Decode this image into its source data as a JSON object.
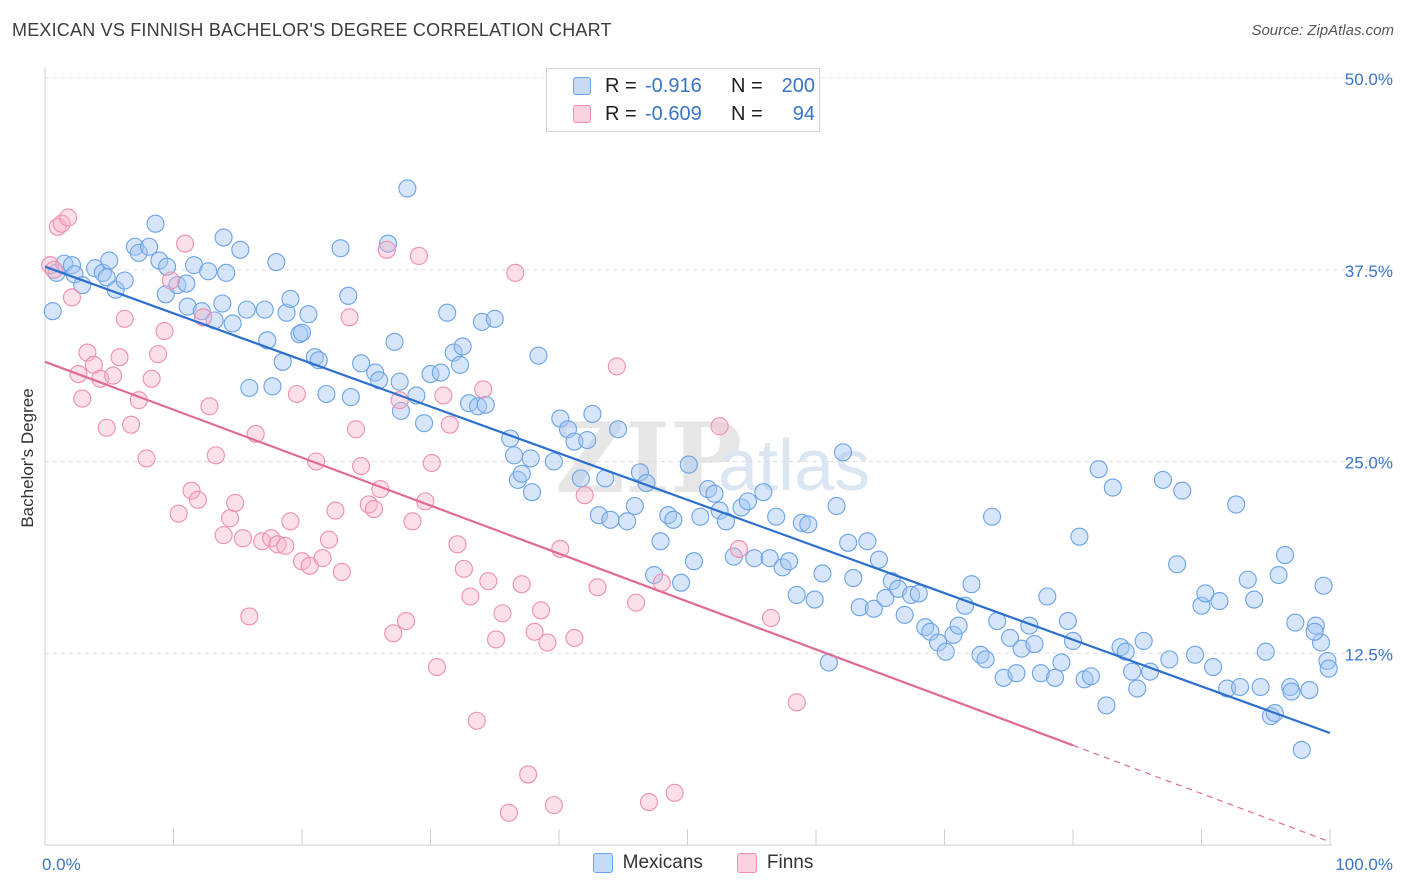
{
  "header": {
    "title": "MEXICAN VS FINNISH BACHELOR'S DEGREE CORRELATION CHART",
    "source": "Source: ZipAtlas.com"
  },
  "watermark": {
    "zip": "ZIP",
    "atlas": "atlas"
  },
  "legend_top": {
    "rows": [
      {
        "r_label": "R =",
        "r_value": "-0.916",
        "n_label": "N =",
        "n_value": "200",
        "color": "#6aa3e8"
      },
      {
        "r_label": "R =",
        "r_value": "-0.609",
        "n_label": "N =",
        "n_value": "94",
        "color": "#ef8fae"
      }
    ]
  },
  "legend_bottom": [
    {
      "label": "Mexicans",
      "color": "#6aa3e8"
    },
    {
      "label": "Finns",
      "color": "#ef8fae"
    }
  ],
  "chart_data": {
    "type": "scatter",
    "title": "MEXICAN VS FINNISH BACHELOR'S DEGREE CORRELATION CHART",
    "xlabel": "",
    "ylabel": "Bachelor's Degree",
    "xlim": [
      0,
      100
    ],
    "ylim": [
      0,
      50
    ],
    "x_tick_labels": [
      "0.0%",
      "100.0%"
    ],
    "y_ticks": [
      12.5,
      25.0,
      37.5,
      50.0
    ],
    "y_tick_labels": [
      "12.5%",
      "25.0%",
      "37.5%",
      "50.0%"
    ],
    "grid": true,
    "legend_position": "top-center",
    "series": [
      {
        "name": "Mexicans",
        "color": "#6aa3e8",
        "line_color": "#2d6fcc",
        "trend": {
          "x": [
            0,
            100
          ],
          "y": [
            37.7,
            7.3
          ]
        },
        "points": [
          [
            0.6,
            34.8
          ],
          [
            0.9,
            37.3
          ],
          [
            1.5,
            37.9
          ],
          [
            2.1,
            37.8
          ],
          [
            2.3,
            37.2
          ],
          [
            2.9,
            36.5
          ],
          [
            3.9,
            37.6
          ],
          [
            4.5,
            37.3
          ],
          [
            4.8,
            37.0
          ],
          [
            5.0,
            38.1
          ],
          [
            5.5,
            36.2
          ],
          [
            6.2,
            36.8
          ],
          [
            7.0,
            39.0
          ],
          [
            7.3,
            38.6
          ],
          [
            8.1,
            39.0
          ],
          [
            8.6,
            40.5
          ],
          [
            8.9,
            38.1
          ],
          [
            9.4,
            35.9
          ],
          [
            9.5,
            37.7
          ],
          [
            10.3,
            36.5
          ],
          [
            11.0,
            36.6
          ],
          [
            11.1,
            35.1
          ],
          [
            11.6,
            37.8
          ],
          [
            12.2,
            34.8
          ],
          [
            12.7,
            37.4
          ],
          [
            13.2,
            34.2
          ],
          [
            13.8,
            35.3
          ],
          [
            13.9,
            39.6
          ],
          [
            14.1,
            37.3
          ],
          [
            14.6,
            34.0
          ],
          [
            15.2,
            38.8
          ],
          [
            15.7,
            34.9
          ],
          [
            15.9,
            29.8
          ],
          [
            17.1,
            34.9
          ],
          [
            17.3,
            32.9
          ],
          [
            17.7,
            29.9
          ],
          [
            18.0,
            38.0
          ],
          [
            18.5,
            31.5
          ],
          [
            18.8,
            34.7
          ],
          [
            19.1,
            35.6
          ],
          [
            19.8,
            33.3
          ],
          [
            20.0,
            33.4
          ],
          [
            20.5,
            34.6
          ],
          [
            21.0,
            31.8
          ],
          [
            21.3,
            31.6
          ],
          [
            21.9,
            29.4
          ],
          [
            23.0,
            38.9
          ],
          [
            23.6,
            35.8
          ],
          [
            23.8,
            29.2
          ],
          [
            24.6,
            31.4
          ],
          [
            25.7,
            30.8
          ],
          [
            26.0,
            30.3
          ],
          [
            26.7,
            39.2
          ],
          [
            27.2,
            32.8
          ],
          [
            27.6,
            30.2
          ],
          [
            27.7,
            28.3
          ],
          [
            28.2,
            42.8
          ],
          [
            28.9,
            29.3
          ],
          [
            29.5,
            27.5
          ],
          [
            30.0,
            30.7
          ],
          [
            30.8,
            30.8
          ],
          [
            31.3,
            34.7
          ],
          [
            31.8,
            32.1
          ],
          [
            32.3,
            31.3
          ],
          [
            32.5,
            32.5
          ],
          [
            33.0,
            28.8
          ],
          [
            33.7,
            28.6
          ],
          [
            34.0,
            34.1
          ],
          [
            34.3,
            28.7
          ],
          [
            35.0,
            34.3
          ],
          [
            36.2,
            26.5
          ],
          [
            36.5,
            25.4
          ],
          [
            36.8,
            23.8
          ],
          [
            37.1,
            24.2
          ],
          [
            37.8,
            25.2
          ],
          [
            37.9,
            23.0
          ],
          [
            38.4,
            31.9
          ],
          [
            39.6,
            25.0
          ],
          [
            40.1,
            27.8
          ],
          [
            40.7,
            27.1
          ],
          [
            41.2,
            26.3
          ],
          [
            41.7,
            23.9
          ],
          [
            42.2,
            26.4
          ],
          [
            42.6,
            28.1
          ],
          [
            43.1,
            21.5
          ],
          [
            43.6,
            23.9
          ],
          [
            44.0,
            21.2
          ],
          [
            44.6,
            27.1
          ],
          [
            45.3,
            21.1
          ],
          [
            45.9,
            22.1
          ],
          [
            46.3,
            24.3
          ],
          [
            46.8,
            23.6
          ],
          [
            47.4,
            17.6
          ],
          [
            47.9,
            19.8
          ],
          [
            48.5,
            21.5
          ],
          [
            48.9,
            21.2
          ],
          [
            49.5,
            17.1
          ],
          [
            50.1,
            24.8
          ],
          [
            50.5,
            18.5
          ],
          [
            51.0,
            21.4
          ],
          [
            51.6,
            23.2
          ],
          [
            52.1,
            22.9
          ],
          [
            52.5,
            21.8
          ],
          [
            53.0,
            21.1
          ],
          [
            53.6,
            18.8
          ],
          [
            54.2,
            22.0
          ],
          [
            54.7,
            22.4
          ],
          [
            55.2,
            18.7
          ],
          [
            55.9,
            23.0
          ],
          [
            56.4,
            18.7
          ],
          [
            56.9,
            21.4
          ],
          [
            57.4,
            18.1
          ],
          [
            57.9,
            18.5
          ],
          [
            58.5,
            16.3
          ],
          [
            58.9,
            21.0
          ],
          [
            59.4,
            20.9
          ],
          [
            59.9,
            16.0
          ],
          [
            60.5,
            17.7
          ],
          [
            61.0,
            11.9
          ],
          [
            61.6,
            22.1
          ],
          [
            62.1,
            25.6
          ],
          [
            62.5,
            19.7
          ],
          [
            62.9,
            17.4
          ],
          [
            63.4,
            15.5
          ],
          [
            64.0,
            19.8
          ],
          [
            64.5,
            15.4
          ],
          [
            64.9,
            18.6
          ],
          [
            65.4,
            16.1
          ],
          [
            65.9,
            17.2
          ],
          [
            66.4,
            16.7
          ],
          [
            66.9,
            15.0
          ],
          [
            67.4,
            16.3
          ],
          [
            68.0,
            16.4
          ],
          [
            68.5,
            14.2
          ],
          [
            68.9,
            13.9
          ],
          [
            69.5,
            13.2
          ],
          [
            70.1,
            12.6
          ],
          [
            70.7,
            13.7
          ],
          [
            71.1,
            14.3
          ],
          [
            71.6,
            15.6
          ],
          [
            72.1,
            17.0
          ],
          [
            72.8,
            12.4
          ],
          [
            73.2,
            12.1
          ],
          [
            73.7,
            21.4
          ],
          [
            74.1,
            14.6
          ],
          [
            74.6,
            10.9
          ],
          [
            75.1,
            13.5
          ],
          [
            75.6,
            11.2
          ],
          [
            76.0,
            12.8
          ],
          [
            76.6,
            14.3
          ],
          [
            77.0,
            13.1
          ],
          [
            77.5,
            11.2
          ],
          [
            78.0,
            16.2
          ],
          [
            78.6,
            10.9
          ],
          [
            79.1,
            11.9
          ],
          [
            79.6,
            14.6
          ],
          [
            80.0,
            13.3
          ],
          [
            80.5,
            20.1
          ],
          [
            80.9,
            10.8
          ],
          [
            81.4,
            11.0
          ],
          [
            82.0,
            24.5
          ],
          [
            82.6,
            9.1
          ],
          [
            83.1,
            23.3
          ],
          [
            83.7,
            12.9
          ],
          [
            84.1,
            12.6
          ],
          [
            84.6,
            11.3
          ],
          [
            85.0,
            10.2
          ],
          [
            85.5,
            13.3
          ],
          [
            86.0,
            11.3
          ],
          [
            87.0,
            23.8
          ],
          [
            87.5,
            12.1
          ],
          [
            88.1,
            18.3
          ],
          [
            88.5,
            23.1
          ],
          [
            89.5,
            12.4
          ],
          [
            90.0,
            15.6
          ],
          [
            90.3,
            16.4
          ],
          [
            90.9,
            11.6
          ],
          [
            91.4,
            15.9
          ],
          [
            92.0,
            10.2
          ],
          [
            92.7,
            22.2
          ],
          [
            93.0,
            10.3
          ],
          [
            93.6,
            17.3
          ],
          [
            94.1,
            16.0
          ],
          [
            94.6,
            10.3
          ],
          [
            95.0,
            12.6
          ],
          [
            95.4,
            8.4
          ],
          [
            96.0,
            17.6
          ],
          [
            96.5,
            18.9
          ],
          [
            96.9,
            10.3
          ],
          [
            97.3,
            14.5
          ],
          [
            97.8,
            6.2
          ],
          [
            98.4,
            10.1
          ],
          [
            98.9,
            14.3
          ],
          [
            99.3,
            13.2
          ],
          [
            99.8,
            12.0
          ],
          [
            99.5,
            16.9
          ],
          [
            95.7,
            8.6
          ],
          [
            97.0,
            10.0
          ],
          [
            98.8,
            13.9
          ],
          [
            99.9,
            11.5
          ]
        ]
      },
      {
        "name": "Finns",
        "color": "#ef8fae",
        "line_color": "#e06a94",
        "trend": {
          "x": [
            0,
            80
          ],
          "y": [
            31.5,
            6.5
          ]
        },
        "trend_dashed": {
          "x": [
            80,
            100
          ],
          "y": [
            6.5,
            0.2
          ]
        },
        "points": [
          [
            0.4,
            37.8
          ],
          [
            0.7,
            37.5
          ],
          [
            1.0,
            40.3
          ],
          [
            1.3,
            40.5
          ],
          [
            1.8,
            40.9
          ],
          [
            2.1,
            35.7
          ],
          [
            2.6,
            30.7
          ],
          [
            2.9,
            29.1
          ],
          [
            3.3,
            32.1
          ],
          [
            3.8,
            31.3
          ],
          [
            4.3,
            30.4
          ],
          [
            4.8,
            27.2
          ],
          [
            5.3,
            30.6
          ],
          [
            5.8,
            31.8
          ],
          [
            6.2,
            34.3
          ],
          [
            6.7,
            27.4
          ],
          [
            7.3,
            29.0
          ],
          [
            7.9,
            25.2
          ],
          [
            8.3,
            30.4
          ],
          [
            8.8,
            32.0
          ],
          [
            9.3,
            33.5
          ],
          [
            9.8,
            36.8
          ],
          [
            10.4,
            21.6
          ],
          [
            10.9,
            39.2
          ],
          [
            11.4,
            23.1
          ],
          [
            11.9,
            22.5
          ],
          [
            12.3,
            34.4
          ],
          [
            12.8,
            28.6
          ],
          [
            13.3,
            25.4
          ],
          [
            13.9,
            20.2
          ],
          [
            14.4,
            21.3
          ],
          [
            14.8,
            22.3
          ],
          [
            15.4,
            20.0
          ],
          [
            15.9,
            14.9
          ],
          [
            16.4,
            26.8
          ],
          [
            16.9,
            19.8
          ],
          [
            17.6,
            20.0
          ],
          [
            18.1,
            19.6
          ],
          [
            18.7,
            19.5
          ],
          [
            19.1,
            21.1
          ],
          [
            19.6,
            29.4
          ],
          [
            20.0,
            18.5
          ],
          [
            20.6,
            18.2
          ],
          [
            21.1,
            25.0
          ],
          [
            21.6,
            18.7
          ],
          [
            22.1,
            19.9
          ],
          [
            22.6,
            21.8
          ],
          [
            23.1,
            17.8
          ],
          [
            23.7,
            34.4
          ],
          [
            24.2,
            27.1
          ],
          [
            24.6,
            24.7
          ],
          [
            25.2,
            22.2
          ],
          [
            25.6,
            21.9
          ],
          [
            26.1,
            23.2
          ],
          [
            26.6,
            38.8
          ],
          [
            27.1,
            13.8
          ],
          [
            27.6,
            29.0
          ],
          [
            28.1,
            14.6
          ],
          [
            28.6,
            21.1
          ],
          [
            29.1,
            38.4
          ],
          [
            29.6,
            22.4
          ],
          [
            30.1,
            24.9
          ],
          [
            30.5,
            11.6
          ],
          [
            31.0,
            29.3
          ],
          [
            31.5,
            27.4
          ],
          [
            32.1,
            19.6
          ],
          [
            32.6,
            18.0
          ],
          [
            33.1,
            16.2
          ],
          [
            33.6,
            8.1
          ],
          [
            34.1,
            29.7
          ],
          [
            34.5,
            17.2
          ],
          [
            35.1,
            13.4
          ],
          [
            35.6,
            15.1
          ],
          [
            36.1,
            2.1
          ],
          [
            36.6,
            37.3
          ],
          [
            37.1,
            17.0
          ],
          [
            37.6,
            4.6
          ],
          [
            38.1,
            13.9
          ],
          [
            38.6,
            15.3
          ],
          [
            39.1,
            13.2
          ],
          [
            39.6,
            2.6
          ],
          [
            40.1,
            19.3
          ],
          [
            41.2,
            13.5
          ],
          [
            42.0,
            22.8
          ],
          [
            43.0,
            16.8
          ],
          [
            44.5,
            31.2
          ],
          [
            46.0,
            15.8
          ],
          [
            47.0,
            2.8
          ],
          [
            48.0,
            17.1
          ],
          [
            49.0,
            3.4
          ],
          [
            52.5,
            27.3
          ],
          [
            54.0,
            19.3
          ],
          [
            56.5,
            14.8
          ],
          [
            58.5,
            9.3
          ]
        ]
      }
    ]
  }
}
